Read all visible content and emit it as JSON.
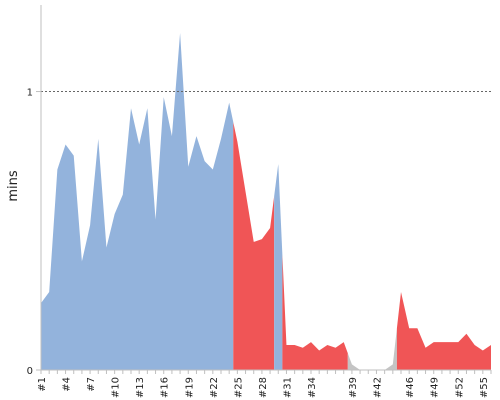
{
  "chart_data": {
    "type": "area",
    "title": "",
    "xlabel": "",
    "ylabel": "mins",
    "ylim": [
      0,
      1.3
    ],
    "reference_line": {
      "y": 1,
      "style": "dotted"
    },
    "grid": false,
    "y_ticks": [
      {
        "value": 0,
        "label": "0"
      },
      {
        "value": 1,
        "label": "1"
      }
    ],
    "x_tick_labels": [
      "#1",
      "#4",
      "#7",
      "#10",
      "#13",
      "#16",
      "#19",
      "#22",
      "#25",
      "#28",
      "#31",
      "#34",
      "#39",
      "#42",
      "#46",
      "#49",
      "#52",
      "#55"
    ],
    "colors": {
      "success": "#93b3dc",
      "failure": "#f05556",
      "aborted": "#c4c4c4"
    },
    "builds": [
      {
        "label": "#1",
        "value": 0.24,
        "status": "success"
      },
      {
        "label": "#2",
        "value": 0.28,
        "status": "success"
      },
      {
        "label": "#3",
        "value": 0.72,
        "status": "success"
      },
      {
        "label": "#4",
        "value": 0.81,
        "status": "success"
      },
      {
        "label": "#5",
        "value": 0.77,
        "status": "success"
      },
      {
        "label": "#6",
        "value": 0.39,
        "status": "success"
      },
      {
        "label": "#7",
        "value": 0.52,
        "status": "success"
      },
      {
        "label": "#8",
        "value": 0.83,
        "status": "success"
      },
      {
        "label": "#9",
        "value": 0.44,
        "status": "success"
      },
      {
        "label": "#10",
        "value": 0.56,
        "status": "success"
      },
      {
        "label": "#11",
        "value": 0.63,
        "status": "success"
      },
      {
        "label": "#12",
        "value": 0.94,
        "status": "success"
      },
      {
        "label": "#13",
        "value": 0.81,
        "status": "success"
      },
      {
        "label": "#14",
        "value": 0.94,
        "status": "success"
      },
      {
        "label": "#15",
        "value": 0.54,
        "status": "success"
      },
      {
        "label": "#16",
        "value": 0.98,
        "status": "success"
      },
      {
        "label": "#17",
        "value": 0.84,
        "status": "success"
      },
      {
        "label": "#18",
        "value": 1.21,
        "status": "success"
      },
      {
        "label": "#19",
        "value": 0.73,
        "status": "success"
      },
      {
        "label": "#20",
        "value": 0.84,
        "status": "success"
      },
      {
        "label": "#21",
        "value": 0.75,
        "status": "success"
      },
      {
        "label": "#22",
        "value": 0.72,
        "status": "success"
      },
      {
        "label": "#23",
        "value": 0.83,
        "status": "success"
      },
      {
        "label": "#24",
        "value": 0.96,
        "status": "success"
      },
      {
        "label": "#25",
        "value": 0.82,
        "status": "failure"
      },
      {
        "label": "#26",
        "value": 0.64,
        "status": "failure"
      },
      {
        "label": "#27",
        "value": 0.46,
        "status": "failure"
      },
      {
        "label": "#28",
        "value": 0.47,
        "status": "failure"
      },
      {
        "label": "#29",
        "value": 0.51,
        "status": "failure"
      },
      {
        "label": "#30",
        "value": 0.74,
        "status": "success"
      },
      {
        "label": "#31",
        "value": 0.09,
        "status": "failure"
      },
      {
        "label": "#32",
        "value": 0.09,
        "status": "failure"
      },
      {
        "label": "#33",
        "value": 0.08,
        "status": "failure"
      },
      {
        "label": "#34",
        "value": 0.1,
        "status": "failure"
      },
      {
        "label": "#35",
        "value": 0.07,
        "status": "failure"
      },
      {
        "label": "#36",
        "value": 0.09,
        "status": "failure"
      },
      {
        "label": "#37",
        "value": 0.08,
        "status": "failure"
      },
      {
        "label": "#38",
        "value": 0.1,
        "status": "failure"
      },
      {
        "label": "#39",
        "value": 0.02,
        "status": "aborted"
      },
      {
        "label": "#40",
        "value": 0.0,
        "status": "aborted"
      },
      {
        "label": "#41",
        "value": 0.0,
        "status": "aborted"
      },
      {
        "label": "#42",
        "value": 0.0,
        "status": "aborted"
      },
      {
        "label": "#43",
        "value": 0.0,
        "status": "aborted"
      },
      {
        "label": "#44",
        "value": 0.02,
        "status": "aborted"
      },
      {
        "label": "#45",
        "value": 0.28,
        "status": "failure"
      },
      {
        "label": "#46",
        "value": 0.15,
        "status": "failure"
      },
      {
        "label": "#47",
        "value": 0.15,
        "status": "failure"
      },
      {
        "label": "#48",
        "value": 0.08,
        "status": "failure"
      },
      {
        "label": "#49",
        "value": 0.1,
        "status": "failure"
      },
      {
        "label": "#50",
        "value": 0.1,
        "status": "failure"
      },
      {
        "label": "#51",
        "value": 0.1,
        "status": "failure"
      },
      {
        "label": "#52",
        "value": 0.1,
        "status": "failure"
      },
      {
        "label": "#53",
        "value": 0.13,
        "status": "failure"
      },
      {
        "label": "#54",
        "value": 0.09,
        "status": "failure"
      },
      {
        "label": "#55",
        "value": 0.07,
        "status": "failure"
      },
      {
        "label": "#56",
        "value": 0.09,
        "status": "failure"
      }
    ]
  }
}
